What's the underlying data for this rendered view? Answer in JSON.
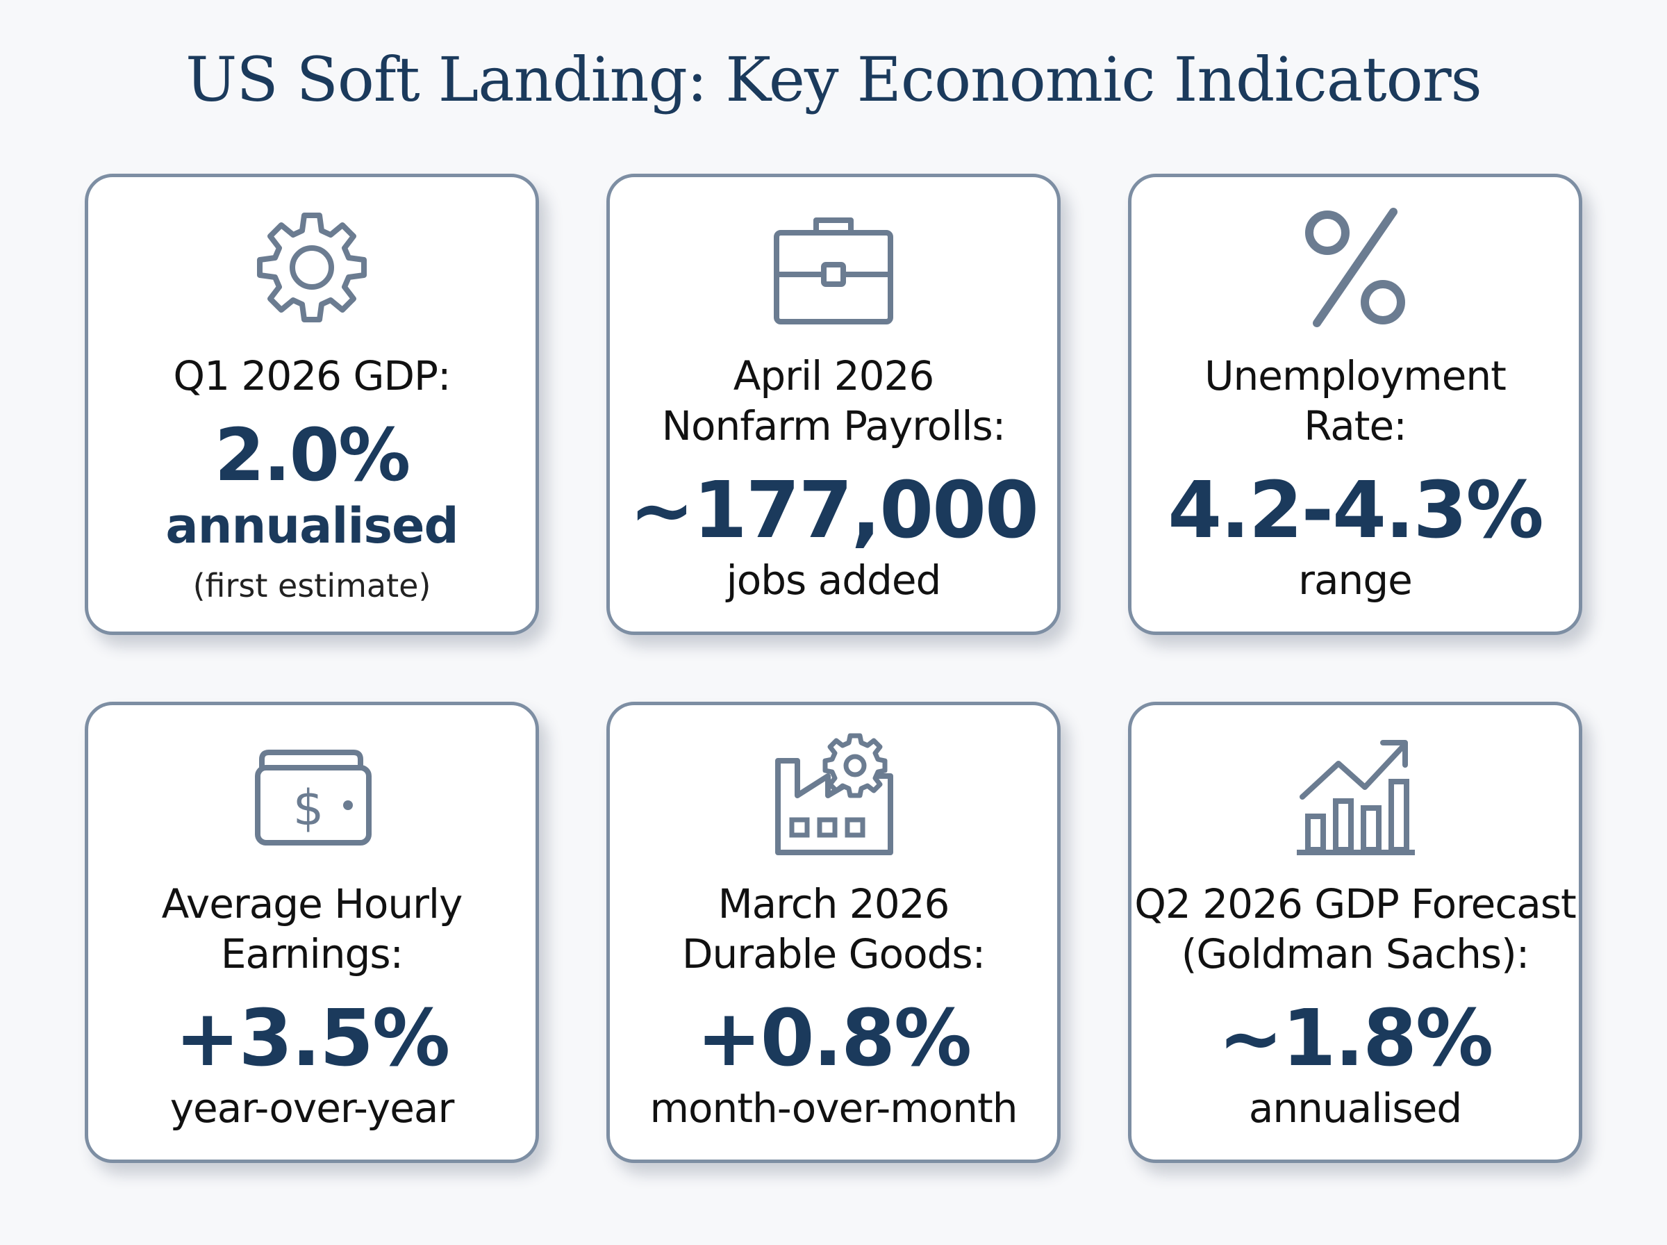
{
  "title": "US Soft Landing: Key Economic Indicators",
  "accent_color": "#1b3a5c",
  "icon_color": "#6b7c91",
  "cards": [
    {
      "icon": "gear-icon",
      "label": "Q1 2026 GDP:",
      "value": "2.0%",
      "sub": "annualised",
      "note": "(first estimate)"
    },
    {
      "icon": "briefcase-icon",
      "label": "April 2026\nNonfarm Payrolls:",
      "value": "~177,000",
      "sub": "jobs added"
    },
    {
      "icon": "percent-icon",
      "label": "Unemployment\nRate:",
      "value": "4.2-4.3%",
      "sub": "range"
    },
    {
      "icon": "wallet-dollar-icon",
      "label": "Average Hourly\nEarnings:",
      "value": "+3.5%",
      "sub": "year-over-year"
    },
    {
      "icon": "factory-icon",
      "label": "March 2026\nDurable Goods:",
      "value": "+0.8%",
      "sub": "month-over-month"
    },
    {
      "icon": "growth-chart-icon",
      "label": "Q2 2026 GDP Forecast\n(Goldman Sachs):",
      "value": "~1.8%",
      "sub": "annualised"
    }
  ]
}
